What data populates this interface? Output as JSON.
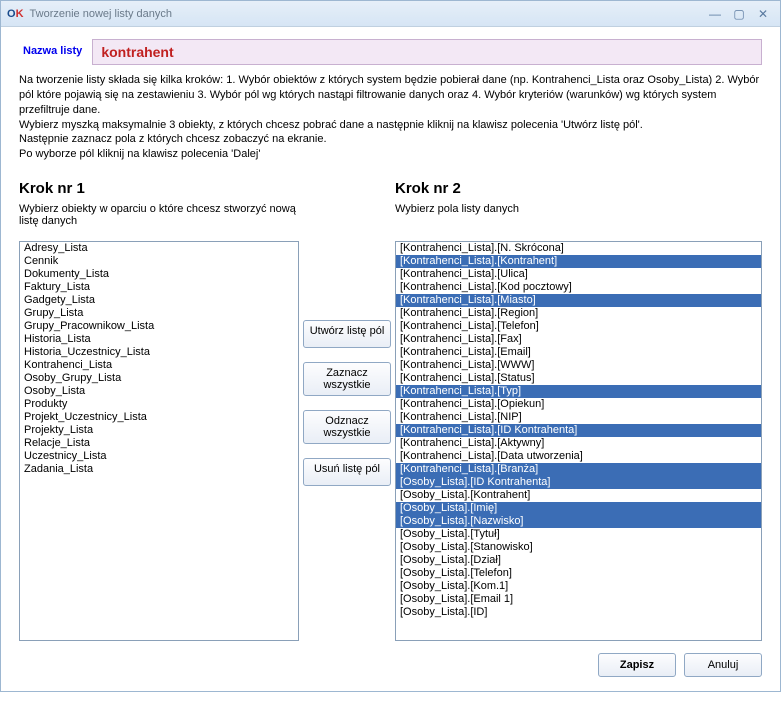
{
  "window": {
    "title": "Tworzenie nowej listy danych"
  },
  "header": {
    "tab_label": "Nazwa listy",
    "list_name": "kontrahent"
  },
  "instructions": [
    "Na tworzenie listy składa się kilka kroków: 1. Wybór obiektów z których system będzie pobierał dane (np. Kontrahenci_Lista oraz Osoby_Lista) 2. Wybór pól które pojawią się na zestawieniu 3. Wybór pól wg których nastąpi filtrowanie danych oraz 4. Wybór kryteriów (warunków) wg których system przefiltruje dane.",
    "Wybierz myszką maksymalnie 3 obiekty, z których chcesz pobrać dane a następnie kliknij na klawisz polecenia 'Utwórz listę pól'.",
    "Następnie zaznacz pola z których chcesz zobaczyć na ekranie.",
    "Po wyborze pól kliknij na klawisz polecenia 'Dalej'"
  ],
  "step1": {
    "title": "Krok nr 1",
    "subtitle": "Wybierz obiekty w oparciu o które chcesz stworzyć nową listę danych",
    "items": [
      "Adresy_Lista",
      "Cennik",
      "Dokumenty_Lista",
      "Faktury_Lista",
      "Gadgety_Lista",
      "Grupy_Lista",
      "Grupy_Pracownikow_Lista",
      "Historia_Lista",
      "Historia_Uczestnicy_Lista",
      "Kontrahenci_Lista",
      "Osoby_Grupy_Lista",
      "Osoby_Lista",
      "Produkty",
      "Projekt_Uczestnicy_Lista",
      "Projekty_Lista",
      "Relacje_Lista",
      "Uczestnicy_Lista",
      "Zadania_Lista"
    ]
  },
  "buttons": {
    "create": "Utwórz listę pól",
    "select_all": "Zaznacz wszystkie",
    "deselect_all": "Odznacz wszystkie",
    "delete": "Usuń listę pól"
  },
  "step2": {
    "title": "Krok nr 2",
    "subtitle": "Wybierz pola listy danych",
    "items": [
      {
        "label": "[Kontrahenci_Lista].[N. Skrócona]",
        "selected": false
      },
      {
        "label": "[Kontrahenci_Lista].[Kontrahent]",
        "selected": true
      },
      {
        "label": "[Kontrahenci_Lista].[Ulica]",
        "selected": false
      },
      {
        "label": "[Kontrahenci_Lista].[Kod pocztowy]",
        "selected": false
      },
      {
        "label": "[Kontrahenci_Lista].[Miasto]",
        "selected": true
      },
      {
        "label": "[Kontrahenci_Lista].[Region]",
        "selected": false
      },
      {
        "label": "[Kontrahenci_Lista].[Telefon]",
        "selected": false
      },
      {
        "label": "[Kontrahenci_Lista].[Fax]",
        "selected": false
      },
      {
        "label": "[Kontrahenci_Lista].[Email]",
        "selected": false
      },
      {
        "label": "[Kontrahenci_Lista].[WWW]",
        "selected": false
      },
      {
        "label": "[Kontrahenci_Lista].[Status]",
        "selected": false
      },
      {
        "label": "[Kontrahenci_Lista].[Typ]",
        "selected": true
      },
      {
        "label": "[Kontrahenci_Lista].[Opiekun]",
        "selected": false
      },
      {
        "label": "[Kontrahenci_Lista].[NIP]",
        "selected": false
      },
      {
        "label": "[Kontrahenci_Lista].[ID Kontrahenta]",
        "selected": true
      },
      {
        "label": "[Kontrahenci_Lista].[Aktywny]",
        "selected": false
      },
      {
        "label": "[Kontrahenci_Lista].[Data utworzenia]",
        "selected": false
      },
      {
        "label": "[Kontrahenci_Lista].[Branża]",
        "selected": true
      },
      {
        "label": "[Osoby_Lista].[ID Kontrahenta]",
        "selected": true
      },
      {
        "label": "[Osoby_Lista].[Kontrahent]",
        "selected": false
      },
      {
        "label": "[Osoby_Lista].[Imię]",
        "selected": true
      },
      {
        "label": "[Osoby_Lista].[Nazwisko]",
        "selected": true
      },
      {
        "label": "[Osoby_Lista].[Tytuł]",
        "selected": false
      },
      {
        "label": "[Osoby_Lista].[Stanowisko]",
        "selected": false
      },
      {
        "label": "[Osoby_Lista].[Dział]",
        "selected": false
      },
      {
        "label": "[Osoby_Lista].[Telefon]",
        "selected": false
      },
      {
        "label": "[Osoby_Lista].[Kom.1]",
        "selected": false
      },
      {
        "label": "[Osoby_Lista].[Email 1]",
        "selected": false
      },
      {
        "label": "[Osoby_Lista].[ID]",
        "selected": false
      }
    ]
  },
  "footer": {
    "save": "Zapisz",
    "cancel": "Anuluj"
  }
}
